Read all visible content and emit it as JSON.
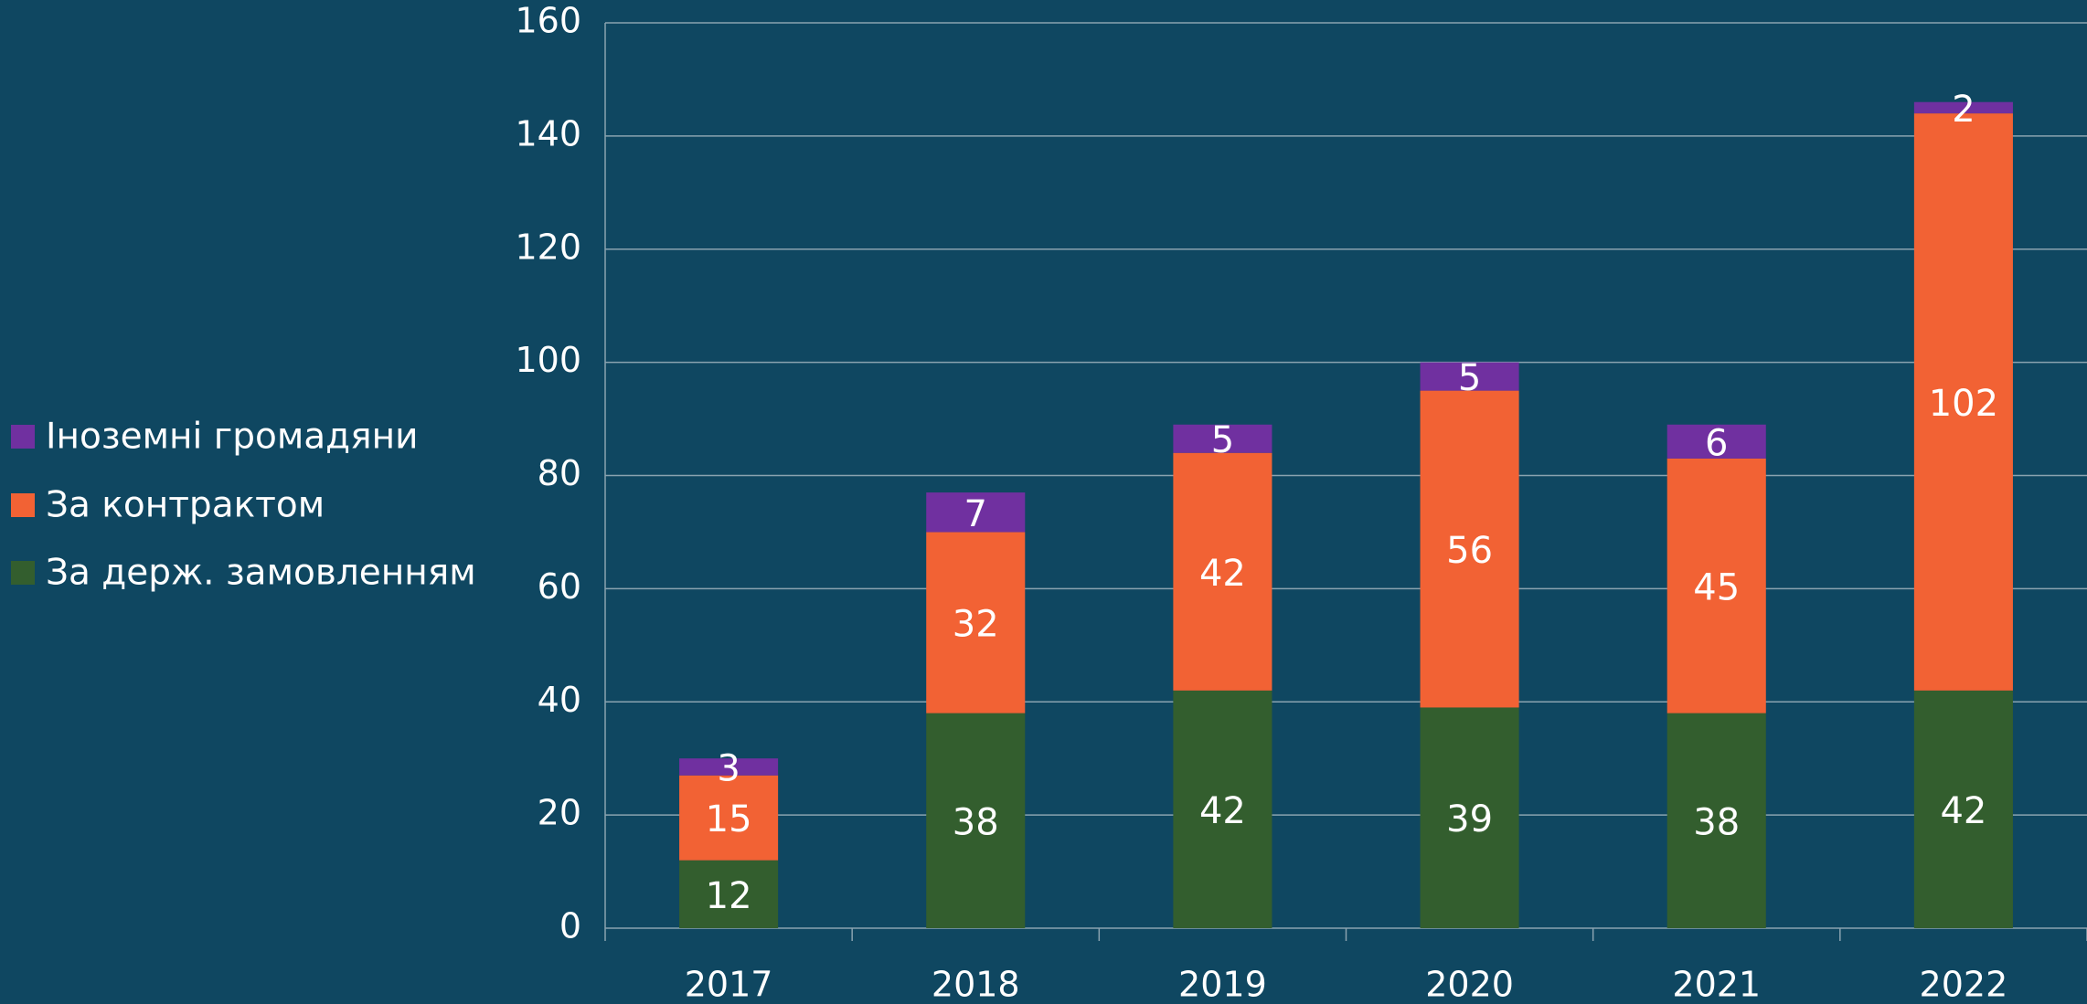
{
  "chart_data": {
    "type": "stacked_bar",
    "categories": [
      "2017",
      "2018",
      "2019",
      "2020",
      "2021",
      "2022"
    ],
    "series": [
      {
        "name": "За держ. замовленням",
        "color": "#335e2e",
        "values": [
          12,
          38,
          42,
          39,
          38,
          42
        ]
      },
      {
        "name": "За контрактом",
        "color": "#f26234",
        "values": [
          15,
          32,
          42,
          56,
          45,
          102
        ]
      },
      {
        "name": "Іноземні громадяни",
        "color": "#7030a0",
        "values": [
          3,
          7,
          5,
          5,
          6,
          2
        ]
      }
    ],
    "ylim": [
      0,
      160
    ],
    "yticks": [
      0,
      20,
      40,
      60,
      80,
      100,
      120,
      140,
      160
    ],
    "grid": true,
    "legend": "left"
  }
}
